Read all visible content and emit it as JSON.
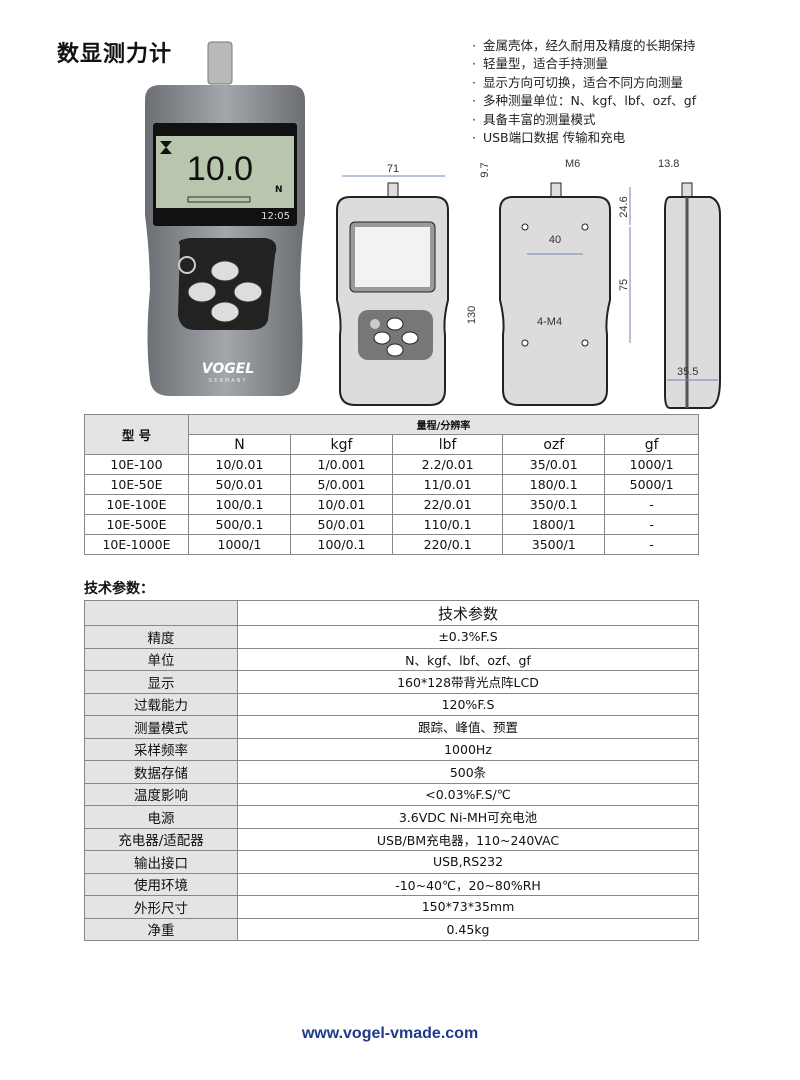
{
  "title": "数显测力计",
  "features": [
    "金属壳体，经久耐用及精度的长期保持",
    "轻量型，适合手持测量",
    "显示方向可切换，适合不同方向测量",
    "多种测量单位：N、kgf、lbf、ozf、gf",
    "具备丰富的测量模式",
    "USB端口数据 传输和充电"
  ],
  "device": {
    "reading": "10.0",
    "unit": "N",
    "time": "12:05",
    "brand": "VOGEL",
    "brand_sub": "GERMANY"
  },
  "dimensions": {
    "width": "71",
    "top": "9.7",
    "thread": "M6",
    "d1": "24.6",
    "hole_spacing": "40",
    "height": "130",
    "d2": "75",
    "holes": "4-M4",
    "side_top": "13.8",
    "depth": "35.5"
  },
  "range_table": {
    "model_header": "型 号",
    "range_header": "量程/分辨率",
    "units": [
      "N",
      "kgf",
      "lbf",
      "ozf",
      "gf"
    ],
    "rows": [
      [
        "10E-100",
        "10/0.01",
        "1/0.001",
        "2.2/0.01",
        "35/0.01",
        "1000/1"
      ],
      [
        "10E-50E",
        "50/0.01",
        "5/0.001",
        "11/0.01",
        "180/0.1",
        "5000/1"
      ],
      [
        "10E-100E",
        "100/0.1",
        "10/0.01",
        "22/0.01",
        "350/0.1",
        "-"
      ],
      [
        "10E-500E",
        "500/0.1",
        "50/0.01",
        "110/0.1",
        "1800/1",
        "-"
      ],
      [
        "10E-1000E",
        "1000/1",
        "100/0.1",
        "220/0.1",
        "3500/1",
        "-"
      ]
    ]
  },
  "spec_title": "技术参数：",
  "spec_table": {
    "header": "技术参数",
    "rows": [
      [
        "精度",
        "±0.3%F.S"
      ],
      [
        "单位",
        "N、kgf、lbf、ozf、gf"
      ],
      [
        "显示",
        "160*128带背光点阵LCD"
      ],
      [
        "过载能力",
        "120%F.S"
      ],
      [
        "测量模式",
        "跟踪、峰值、预置"
      ],
      [
        "采样频率",
        "1000Hz"
      ],
      [
        "数据存储",
        "500条"
      ],
      [
        "温度影响",
        "<0.03%F.S/℃"
      ],
      [
        "电源",
        "3.6VDC Ni-MH可充电池"
      ],
      [
        "充电器/适配器",
        "USB/BM充电器，110~240VAC"
      ],
      [
        "输出接口",
        "USB,RS232"
      ],
      [
        "使用环境",
        "-10~40℃，20~80%RH"
      ],
      [
        "外形尺寸",
        "150*73*35mm"
      ],
      [
        "净重",
        "0.45kg"
      ]
    ]
  },
  "footer_url": "www.vogel-vmade.com"
}
